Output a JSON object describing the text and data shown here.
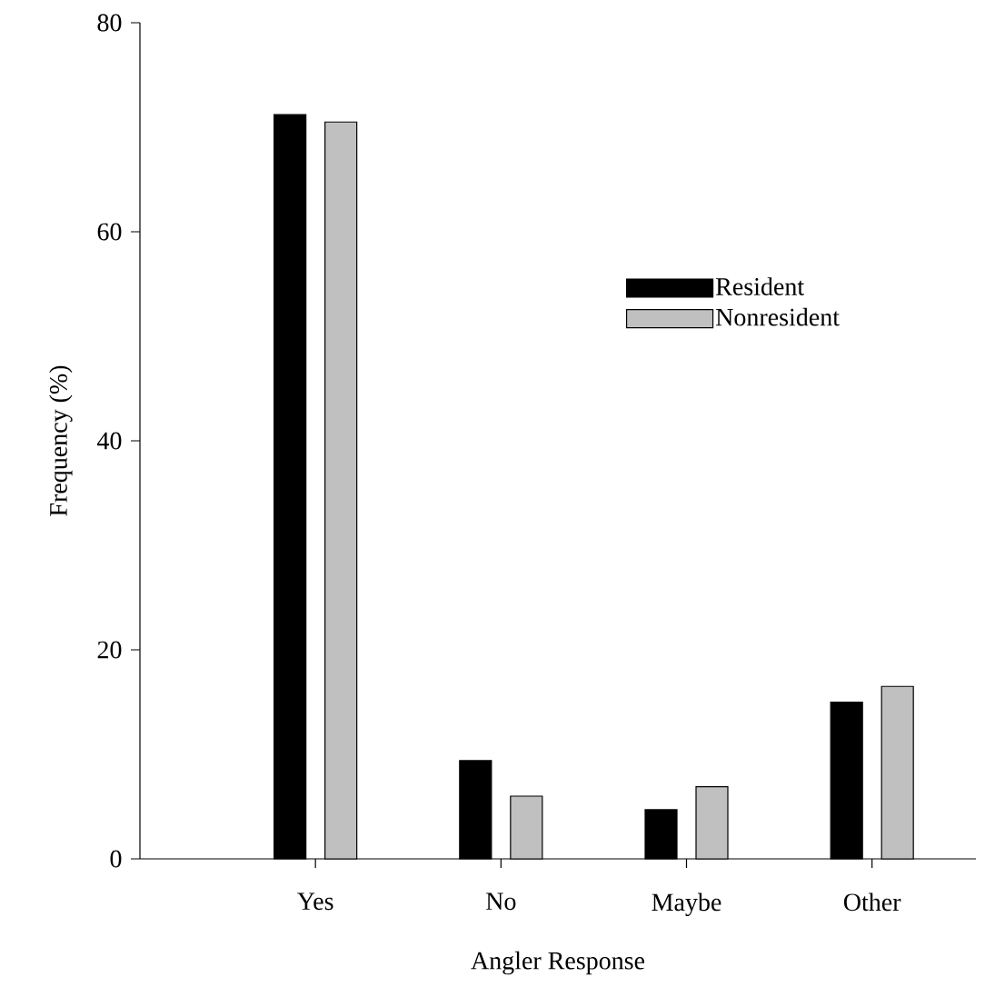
{
  "chart_data": {
    "type": "bar",
    "xlabel": "Angler Response",
    "ylabel": "Frequency (%)",
    "categories": [
      "Yes",
      "No",
      "Maybe",
      "Other"
    ],
    "series": [
      {
        "name": "Resident",
        "color": "#000000",
        "values": [
          71.2,
          9.4,
          4.7,
          15.0
        ]
      },
      {
        "name": "Nonresident",
        "color": "#c0c0c0",
        "values": [
          70.5,
          6.0,
          6.9,
          16.5
        ]
      }
    ],
    "ylim": [
      0,
      80
    ],
    "yticks": [
      0,
      20,
      40,
      60,
      80
    ],
    "legend": "right"
  }
}
